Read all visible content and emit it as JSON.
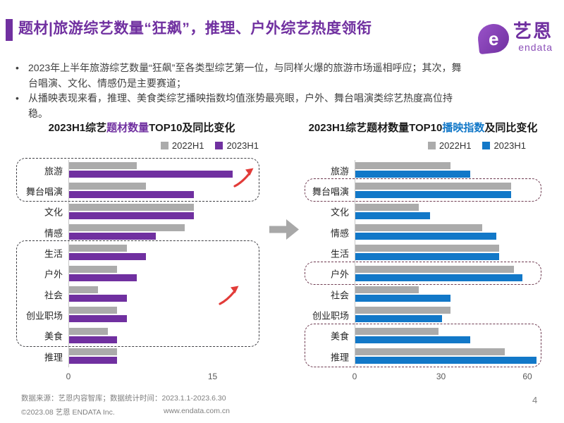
{
  "header": {
    "title": "题材|旅游综艺数量“狂飙”，推理、户外综艺热度领衔"
  },
  "logo": {
    "symbol": "e",
    "cn": "艺恩",
    "en": "endata"
  },
  "bullets": [
    "2023年上半年旅游综艺数量“狂飙”至各类型综艺第一位，与同样火爆的旅游市场遥相呼应；其次，舞台唱演、文化、情感仍是主要赛道；",
    "从播映表现来看，推理、美食类综艺播映指数均值涨势最亮眼，户外、舞台唱演类综艺热度高位持稳。"
  ],
  "colors": {
    "accent_purple": "#7030A0",
    "bar_gray": "#ABABAB",
    "bar_purple": "#7030A0",
    "bar_blue": "#1278C8",
    "trend_arrow_red": "#E23C39"
  },
  "chart_data": [
    {
      "type": "bar",
      "orientation": "horizontal",
      "title_prefix": "2023H1综艺",
      "title_highlight": "题材数量",
      "title_suffix": "TOP10及同比变化",
      "highlight_color": "#7030A0",
      "categories": [
        "旅游",
        "舞台唱演",
        "文化",
        "情感",
        "生活",
        "户外",
        "社会",
        "创业职场",
        "美食",
        "推理"
      ],
      "series": [
        {
          "name": "2022H1",
          "color": "#ABABAB",
          "values": [
            7,
            8,
            13,
            12,
            6,
            5,
            3,
            5,
            4,
            5
          ]
        },
        {
          "name": "2023H1",
          "color": "#7030A0",
          "values": [
            17,
            13,
            13,
            9,
            8,
            7,
            6,
            6,
            5,
            5
          ]
        }
      ],
      "ticks": [
        {
          "label": "0",
          "value": 0
        },
        {
          "label": "15",
          "value": 15
        }
      ],
      "axis_max": 19.8,
      "grid": false,
      "legend_position": "top-right",
      "highlight_boxes": [
        {
          "from": 0,
          "to": 1
        },
        {
          "from": 4,
          "to": 8
        }
      ],
      "box_color": "#3F3F44"
    },
    {
      "type": "bar",
      "orientation": "horizontal",
      "title_prefix": "2023H1综艺题材数量TOP10",
      "title_highlight": "播映指数",
      "title_suffix": "及同比变化",
      "highlight_color": "#1278C8",
      "categories": [
        "旅游",
        "舞台唱演",
        "文化",
        "情感",
        "生活",
        "户外",
        "社会",
        "创业职场",
        "美食",
        "推理"
      ],
      "series": [
        {
          "name": "2022H1",
          "color": "#ABABAB",
          "values": [
            33,
            54,
            22,
            44,
            50,
            55,
            22,
            33,
            29,
            52
          ]
        },
        {
          "name": "2023H1",
          "color": "#1278C8",
          "values": [
            40,
            54,
            26,
            49,
            50,
            58,
            33,
            30,
            40,
            63
          ]
        }
      ],
      "ticks": [
        {
          "label": "0",
          "value": 0
        },
        {
          "label": "30",
          "value": 30
        },
        {
          "label": "60",
          "value": 60
        }
      ],
      "axis_max": 64.4,
      "grid": false,
      "legend_position": "top-right",
      "highlight_boxes": [
        {
          "from": 1,
          "to": 1
        },
        {
          "from": 5,
          "to": 5
        },
        {
          "from": 8,
          "to": 9
        }
      ],
      "box_color": "#6E3A50"
    }
  ],
  "footer": {
    "source": "数据来源：艺恩内容智库；数据统计时间：2023.1.1-2023.6.30",
    "copyright": "©2023.08 艺恩 ENDATA Inc.",
    "website": "www.endata.com.cn",
    "page_number": "4"
  }
}
